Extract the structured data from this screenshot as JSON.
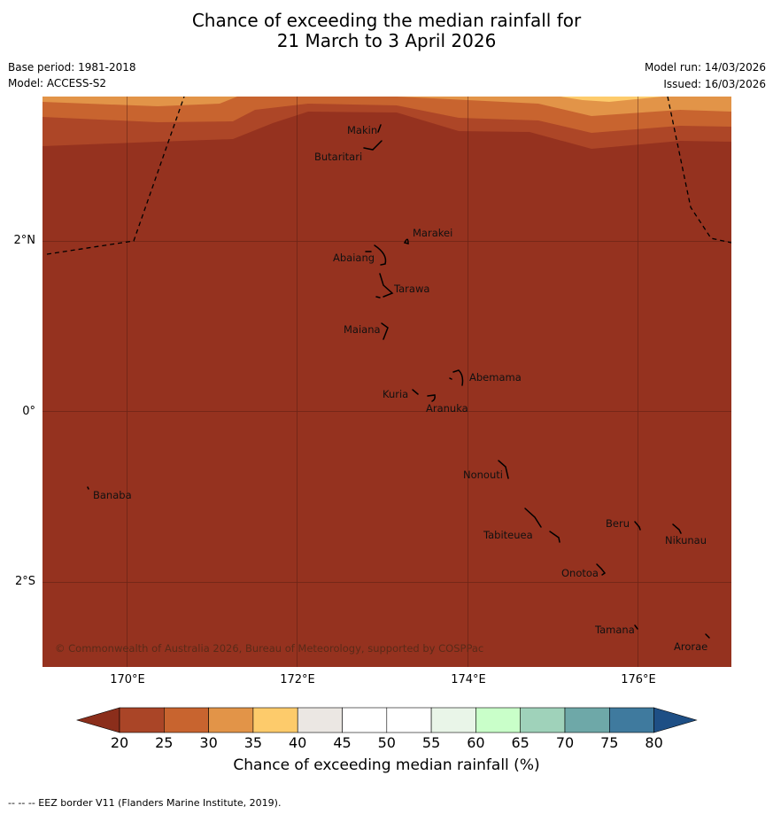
{
  "title": {
    "line1": "Chance of exceeding the median rainfall for",
    "line2": "21 March to 3 April 2026"
  },
  "meta": {
    "base_period": "Base period: 1981-2018",
    "model": "Model: ACCESS-S2",
    "model_run": "Model run: 14/03/2026",
    "issued": "Issued: 16/03/2026"
  },
  "axes": {
    "y_ticks": [
      "2°N",
      "0°",
      "2°S"
    ],
    "x_ticks": [
      "170°E",
      "172°E",
      "174°E",
      "176°E"
    ]
  },
  "map": {
    "extent": {
      "lon_min": 169.0,
      "lon_max": 177.0,
      "lat_min": -3.0,
      "lat_max": 3.7
    },
    "islands": [
      {
        "name": "Makin",
        "lon": 172.97,
        "lat": 3.37
      },
      {
        "name": "Butaritari",
        "lon": 172.8,
        "lat": 3.07
      },
      {
        "name": "Marakei",
        "lon": 173.27,
        "lat": 2.0
      },
      {
        "name": "Abaiang",
        "lon": 172.95,
        "lat": 1.84
      },
      {
        "name": "Tarawa",
        "lon": 173.05,
        "lat": 1.43
      },
      {
        "name": "Maiana",
        "lon": 173.0,
        "lat": 0.95
      },
      {
        "name": "Abemama",
        "lon": 173.87,
        "lat": 0.42
      },
      {
        "name": "Kuria",
        "lon": 173.4,
        "lat": 0.23
      },
      {
        "name": "Aranuka",
        "lon": 173.62,
        "lat": 0.17
      },
      {
        "name": "Banaba",
        "lon": 169.53,
        "lat": -0.87
      },
      {
        "name": "Nonouti",
        "lon": 174.42,
        "lat": -0.68
      },
      {
        "name": "Tabiteuea",
        "lon": 174.8,
        "lat": -1.3
      },
      {
        "name": "Beru",
        "lon": 175.99,
        "lat": -1.33
      },
      {
        "name": "Nikunau",
        "lon": 176.45,
        "lat": -1.36
      },
      {
        "name": "Onotoa",
        "lon": 175.58,
        "lat": -1.85
      },
      {
        "name": "Tamana",
        "lon": 175.98,
        "lat": -2.5
      },
      {
        "name": "Arorae",
        "lon": 176.82,
        "lat": -2.64
      }
    ],
    "copyright": "© Commonwealth of Australia 2026, Bureau of Meteorology, supported by COSPPac"
  },
  "colorbar": {
    "levels": [
      "20",
      "25",
      "30",
      "35",
      "40",
      "45",
      "50",
      "55",
      "60",
      "65",
      "70",
      "75",
      "80"
    ],
    "colors": [
      "#8b2e1b",
      "#aa4527",
      "#c8642f",
      "#e29448",
      "#fdcb6b",
      "#ebe7e3",
      "#ffffff",
      "#ffffff",
      "#e9f5e8",
      "#c9ffc9",
      "#9fd2ba",
      "#6ea8a8",
      "#3f7a9e",
      "#1e4f85"
    ],
    "title": "Chance of exceeding median rainfall (%)"
  },
  "footnote": "--  --  -- EEZ border V11 (Flanders Marine Institute, 2019)."
}
